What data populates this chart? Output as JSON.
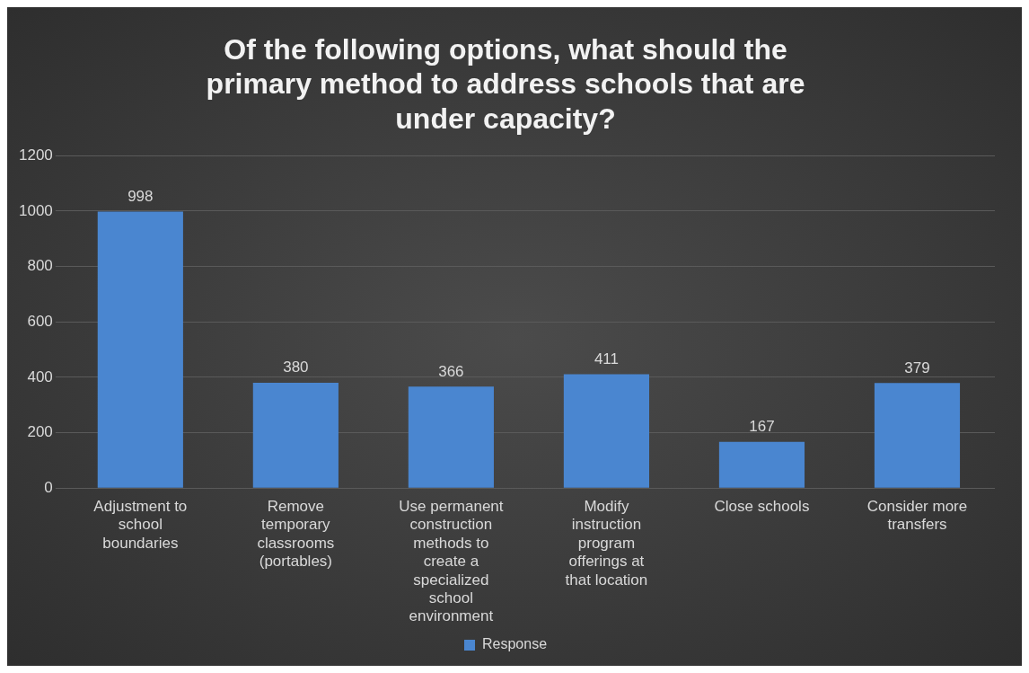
{
  "chart_data": {
    "type": "bar",
    "title": "Of the following options, what should the primary method to address schools that are under capacity?",
    "categories": [
      "Adjustment to school boundaries",
      "Remove temporary classrooms (portables)",
      "Use permanent construction methods to create a specialized school environment",
      "Modify instruction program offerings at that location",
      "Close schools",
      "Consider more transfers"
    ],
    "series": [
      {
        "name": "Response",
        "color": "#4a86d0",
        "values": [
          998,
          380,
          366,
          411,
          167,
          379
        ]
      }
    ],
    "ylim": [
      0,
      1200
    ],
    "yticks": [
      0,
      200,
      400,
      600,
      800,
      1000,
      1200
    ],
    "grid": "y",
    "legend": "bottom",
    "data_labels": true
  }
}
